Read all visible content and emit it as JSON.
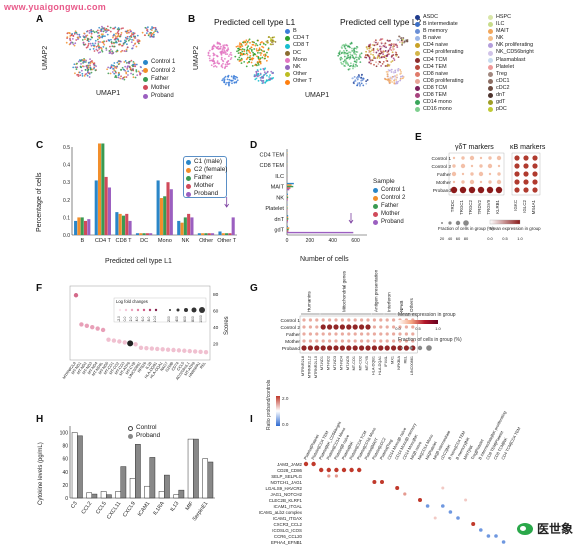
{
  "watermark": "www.yuaigongwu.com",
  "brand": {
    "name": "医世象"
  },
  "panels": {
    "A": {
      "letter": "A",
      "xlabel": "UMAP1",
      "ylabel": "UMAP2",
      "legend": [
        {
          "name": "Control 1",
          "color": "#2a86c8"
        },
        {
          "name": "Control 2",
          "color": "#f28e2b"
        },
        {
          "name": "Father",
          "color": "#3a9a52"
        },
        {
          "name": "Mother",
          "color": "#d04a5a"
        },
        {
          "name": "Proband",
          "color": "#9b5fc0"
        }
      ]
    },
    "B": {
      "letter": "B",
      "title1": "Predicted cell type L1",
      "title2": "Predicted cell type L2",
      "xlabel": "UMAP1",
      "ylabel": "UMAP2",
      "legend_l1": [
        {
          "name": "B",
          "color": "#3b7dd8"
        },
        {
          "name": "CD4 T",
          "color": "#2ca02c"
        },
        {
          "name": "CD8 T",
          "color": "#17becf"
        },
        {
          "name": "DC",
          "color": "#8c6d31"
        },
        {
          "name": "Mono",
          "color": "#e377c2"
        },
        {
          "name": "NK",
          "color": "#9467bd"
        },
        {
          "name": "Other",
          "color": "#bcbd22"
        },
        {
          "name": "Other T",
          "color": "#ff7f0e"
        }
      ],
      "legend_l2_col1": [
        {
          "name": "ASDC",
          "color": "#1f3b8c"
        },
        {
          "name": "B intermediate",
          "color": "#3b6fc7"
        },
        {
          "name": "B memory",
          "color": "#6a8fd6"
        },
        {
          "name": "B naive",
          "color": "#9bb6e8"
        },
        {
          "name": "CD4 naive",
          "color": "#c9a227"
        },
        {
          "name": "CD4 proliferating",
          "color": "#d4b64a"
        },
        {
          "name": "CD4 TCM",
          "color": "#8c2d2d"
        },
        {
          "name": "CD4 TEM",
          "color": "#b84a3e"
        },
        {
          "name": "CD8 naive",
          "color": "#e07b6a"
        },
        {
          "name": "CD8 proliferating",
          "color": "#e8a598"
        },
        {
          "name": "CD8 TCM",
          "color": "#7a1f5c"
        },
        {
          "name": "CD8 TEM",
          "color": "#a8447f"
        },
        {
          "name": "CD14 mono",
          "color": "#3aa55a"
        },
        {
          "name": "CD16 mono",
          "color": "#7fcf8f"
        }
      ],
      "legend_l2_col2": [
        {
          "name": "HSPC",
          "color": "#d9e6a8"
        },
        {
          "name": "ILC",
          "color": "#c8dc8a"
        },
        {
          "name": "MAIT",
          "color": "#f2a65a"
        },
        {
          "name": "NK",
          "color": "#f5c08a"
        },
        {
          "name": "NK proliferating",
          "color": "#b39ddb"
        },
        {
          "name": "NK_CD56bright",
          "color": "#d1c4e9"
        },
        {
          "name": "Plasmablast",
          "color": "#c6dbef"
        },
        {
          "name": "Platelet",
          "color": "#ef9a9a"
        },
        {
          "name": "Treg",
          "color": "#a1887f"
        },
        {
          "name": "cDC1",
          "color": "#8d6e63"
        },
        {
          "name": "cDC2",
          "color": "#6d4c41"
        },
        {
          "name": "dnT",
          "color": "#4e342e"
        },
        {
          "name": "gdT",
          "color": "#9e9d24"
        },
        {
          "name": "pDC",
          "color": "#c0ca33"
        }
      ]
    },
    "C": {
      "letter": "C",
      "xlabel": "Predicted cell type L1",
      "ylabel": "Percentage of cells",
      "legend": [
        {
          "name": "C1 (male)",
          "color": "#2a86c8"
        },
        {
          "name": "C2 (female)",
          "color": "#f28e2b"
        },
        {
          "name": "Father",
          "color": "#3a9a52"
        },
        {
          "name": "Mother",
          "color": "#d04a5a"
        },
        {
          "name": "Proband",
          "color": "#9b5fc0"
        }
      ]
    },
    "D": {
      "letter": "D",
      "xlabel": "Number of cells",
      "legend_title": "Sample",
      "legend": [
        {
          "name": "Control 1",
          "color": "#2a86c8"
        },
        {
          "name": "Control 2",
          "color": "#f28e2b"
        },
        {
          "name": "Father",
          "color": "#3a9a52"
        },
        {
          "name": "Mother",
          "color": "#d04a5a"
        },
        {
          "name": "Proband",
          "color": "#9b5fc0"
        }
      ]
    },
    "E": {
      "letter": "E",
      "title1": "γδT markers",
      "title2": "κB markers",
      "rows": [
        "Control 1",
        "Control 2",
        "Father",
        "Mother",
        "Proband"
      ],
      "cols1": [
        "TRDC",
        "TRGC1",
        "TRGC2",
        "TRDV2",
        "TRGV9",
        "KLRB1"
      ],
      "cols2": [
        "IGKC",
        "IGLC2",
        "MS4A1"
      ],
      "legend_frac": "Fraction of cells in group (%)",
      "legend_mean": "Mean expression in group",
      "frac_ticks": [
        "20",
        "40",
        "60",
        "80"
      ],
      "mean_ticks": [
        "0.0",
        "0.5",
        "1.0"
      ]
    },
    "F": {
      "letter": "F",
      "ylabel": "Scores",
      "legend_title": "Log fold changes",
      "legend_items": [
        "-2.0",
        "0.0",
        "2.0",
        "4.0",
        "6.0",
        "8.0",
        "10.0"
      ],
      "legend_items2": [
        "200",
        "400",
        "600",
        "800",
        "1000"
      ],
      "genes": [
        "MTRNR2L8",
        "MT-ND1",
        "MT-ND2",
        "MT-ND3",
        "MT-ND4",
        "MT-ND4L",
        "MT-ND5",
        "MT-CO1",
        "MT-CO2",
        "MT-CO3",
        "MT-ATP6",
        "MT-CYB",
        "LINC00861",
        "RPS26",
        "IL1B",
        "HLA-DQB1",
        "HLA-DQA1",
        "NKG7",
        "GZMB",
        "CD74",
        "CCL5",
        "AC020916.1",
        "MT-ATP8",
        "HNRNPA1",
        "REL"
      ],
      "yticks": [
        "20",
        "40",
        "60",
        "80"
      ]
    },
    "G": {
      "letter": "G",
      "groups": [
        "Humanins",
        "Mitochondrial genes",
        "Antigen presentation",
        "Interferon",
        "NFκB",
        "Others"
      ],
      "rows": [
        "Control 1",
        "Control 2",
        "Father",
        "Mother",
        "Proband"
      ],
      "cols": [
        "MTRNR2L8",
        "MTRNR2L12",
        "MTRNR2L10",
        "MT-ND1",
        "MT-ND2",
        "MT-ND3",
        "MT-ND4",
        "MT-ND5",
        "MT-CO1",
        "MT-CO2",
        "MT-CYB",
        "HLA-DQB1",
        "HLA-DQA1",
        "IFI44L",
        "MX1",
        "NFKBIA",
        "REL",
        "LINC00861"
      ],
      "legend_mean": "Mean expression in group",
      "legend_frac": "Fraction of cells in group (%)",
      "mean_ticks": [
        "0.0",
        "0.5",
        "1.0"
      ]
    },
    "H": {
      "letter": "H",
      "ylabel": "Cytokine levels (pg/mL)",
      "legend": [
        {
          "name": "Control",
          "color": "#ffffff"
        },
        {
          "name": "Proband",
          "color": "#888888"
        }
      ],
      "yticks": [
        "0",
        "20",
        "40",
        "60",
        "80",
        "100"
      ]
    },
    "I": {
      "letter": "I",
      "legend_title": "Ratio proband/controls",
      "legend_ticks": [
        "0.0",
        "2.0"
      ],
      "rows": [
        "JAM3_JAM2",
        "CD28_CD86",
        "SELP_SELPLG",
        "NOTCH1_JAG1",
        "LGALS9_HAVCR2",
        "JAG1_NOTCH2",
        "CLEC2B_KLRF1",
        "ICAM1_ITGAL",
        "ICAM1_aLb2 complex",
        "ICAM1_ITGAX",
        "CXCR3_CCL2",
        "ICOSLG_ICOS",
        "CCR6_CCL20",
        "EPHA4_EFNB1"
      ],
      "cols": [
        "Platelet|Platelet",
        "Platelet|CD4 TEM",
        "Platelet|NK_CD56bright",
        "Platelet|CD14 Mono",
        "Platelet|B naive",
        "Platelet|NK",
        "Platelet|CD4 TCM",
        "Platelet|CD16 Mono",
        "Platelet|MAIT",
        "Platelet|cDC2",
        "Platelet|Treg",
        "CD14 Mono|B naive",
        "CD14 Mono|B memory",
        "CD14 Mono|NK",
        "NK|B naive",
        "NK|CD14 Mono",
        "NK|Platelet",
        "NK|B intermediate",
        "cDC2|NK",
        "B naive|CD4 TEM",
        "B memory|NK",
        "MAIT|NK",
        "Treg|Platelet",
        "B intermediate|NK proliferating",
        "CD8 TEM|Platelet",
        "CD8 TCM|NK",
        "CD4 TCM|CD4 TEM"
      ]
    }
  },
  "chart_data": [
    {
      "type": "bar",
      "panel": "C",
      "categories": [
        "B",
        "CD4 T",
        "CD8 T",
        "DC",
        "Mono",
        "NK",
        "Other",
        "Other T"
      ],
      "series": [
        {
          "name": "C1 (male)",
          "values": [
            0.08,
            0.31,
            0.13,
            0.01,
            0.31,
            0.08,
            0.01,
            0.02
          ]
        },
        {
          "name": "C2 (female)",
          "values": [
            0.1,
            0.52,
            0.12,
            0.01,
            0.21,
            0.07,
            0.01,
            0.01
          ]
        },
        {
          "name": "Father",
          "values": [
            0.1,
            0.52,
            0.11,
            0.01,
            0.22,
            0.1,
            0.01,
            0.01
          ]
        },
        {
          "name": "Mother",
          "values": [
            0.08,
            0.33,
            0.12,
            0.01,
            0.3,
            0.12,
            0.01,
            0.01
          ]
        },
        {
          "name": "Proband",
          "values": [
            0.09,
            0.27,
            0.08,
            0.01,
            0.26,
            0.1,
            0.01,
            0.1
          ]
        }
      ],
      "xlabel": "Predicted cell type L1",
      "ylabel": "Percentage of cells",
      "ylim": [
        0,
        0.5
      ],
      "yticks": [
        "0.0",
        "0.1",
        "0.2",
        "0.3",
        "0.4",
        "0.5"
      ]
    },
    {
      "type": "bar",
      "panel": "D",
      "orientation": "horizontal",
      "categories": [
        "CD4 TEM",
        "CD8 TEM",
        "ILC",
        "MAIT",
        "NK",
        "Platelet",
        "dnT",
        "gdT"
      ],
      "series": [
        {
          "name": "Control 1",
          "values": [
            2,
            2,
            1,
            60,
            8,
            4,
            10,
            8
          ]
        },
        {
          "name": "Control 2",
          "values": [
            3,
            2,
            1,
            40,
            6,
            3,
            10,
            20
          ]
        },
        {
          "name": "Father",
          "values": [
            2,
            1,
            1,
            55,
            10,
            5,
            12,
            15
          ]
        },
        {
          "name": "Mother",
          "values": [
            2,
            1,
            1,
            30,
            7,
            4,
            8,
            12
          ]
        },
        {
          "name": "Proband",
          "values": [
            1,
            2,
            1,
            20,
            6,
            3,
            8,
            580
          ]
        }
      ],
      "xlabel": "Number of cells",
      "xlim": [
        0,
        700
      ],
      "xticks": [
        "0",
        "200",
        "400",
        "600"
      ]
    },
    {
      "type": "bar",
      "panel": "H",
      "categories": [
        "C3",
        "CCL2",
        "CCL5",
        "CXCL11",
        "CXCL9",
        "ICAM1",
        "IL1RA",
        "IL13",
        "MIF",
        "SerpinE1"
      ],
      "series": [
        {
          "name": "Control",
          "values": [
            100,
            8,
            10,
            10,
            30,
            18,
            10,
            5,
            90,
            60
          ]
        },
        {
          "name": "Proband",
          "values": [
            95,
            6,
            5,
            48,
            82,
            62,
            35,
            12,
            90,
            55
          ]
        }
      ],
      "ylabel": "Cytokine levels (pg/mL)",
      "ylim": [
        0,
        110
      ]
    }
  ]
}
